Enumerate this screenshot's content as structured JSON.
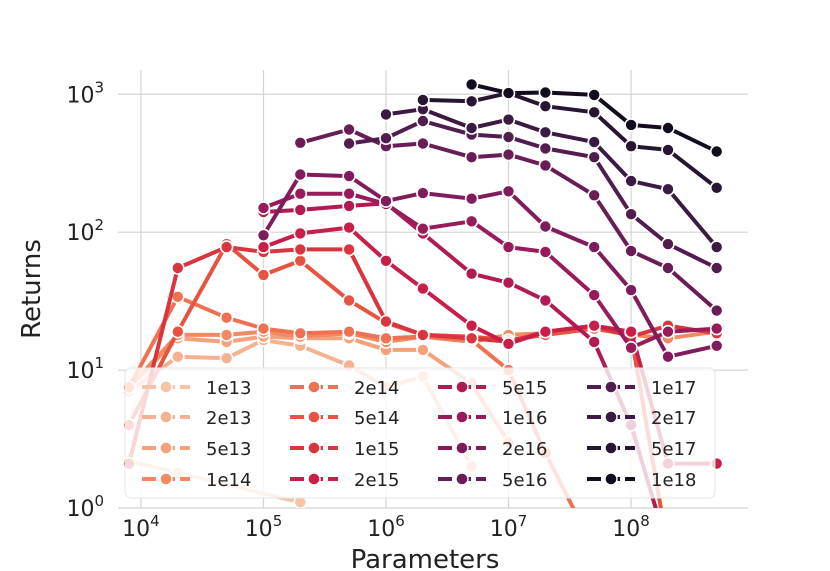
{
  "chart_data": {
    "type": "line",
    "xlabel": "Parameters",
    "ylabel": "Returns",
    "xscale": "log",
    "yscale": "log",
    "xlim": [
      6500,
      900000000
    ],
    "ylim": [
      1,
      1500
    ],
    "x_ticks": [
      {
        "value": 10000,
        "base": "10",
        "exp": "4"
      },
      {
        "value": 100000,
        "base": "10",
        "exp": "5"
      },
      {
        "value": 1000000,
        "base": "10",
        "exp": "6"
      },
      {
        "value": 10000000,
        "base": "10",
        "exp": "7"
      },
      {
        "value": 100000000,
        "base": "10",
        "exp": "8"
      }
    ],
    "y_ticks": [
      {
        "value": 1,
        "base": "10",
        "exp": "0"
      },
      {
        "value": 10,
        "base": "10",
        "exp": "1"
      },
      {
        "value": 100,
        "base": "10",
        "exp": "2"
      },
      {
        "value": 1000,
        "base": "10",
        "exp": "3"
      }
    ],
    "grid": true,
    "legend_position": "lower-left",
    "series": [
      {
        "name": "1e13",
        "color": "#f6c3a6",
        "x": [
          8000,
          20000,
          200000
        ],
        "y": [
          2.2,
          1.8,
          1.1
        ]
      },
      {
        "name": "2e13",
        "color": "#f5b190",
        "x": [
          8000,
          20000,
          50000,
          100000,
          200000,
          500000,
          1000000,
          2000000,
          5000000
        ],
        "y": [
          7.0,
          12.5,
          12.2,
          16.5,
          15.0,
          10.8,
          7.5,
          9.0,
          2.0
        ]
      },
      {
        "name": "5e13",
        "color": "#f4a17e",
        "x": [
          8000,
          20000,
          50000,
          100000,
          200000,
          500000,
          1000000,
          2000000,
          5000000,
          10000000
        ],
        "y": [
          7.5,
          17.0,
          16.0,
          17.5,
          17.0,
          17.0,
          14.0,
          14.0,
          8.0,
          3.0
        ]
      },
      {
        "name": "1e14",
        "color": "#f18a63",
        "x": [
          8000,
          20000,
          50000,
          100000,
          200000,
          500000,
          1000000,
          2000000,
          5000000,
          10000000,
          20000000,
          50000000,
          100000000,
          200000000,
          500000000
        ],
        "y": [
          7.5,
          18.0,
          18.0,
          19.0,
          17.5,
          18.5,
          16.0,
          17.5,
          16.0,
          18.0,
          18.5,
          20.0,
          18.0,
          17.0,
          19.0
        ]
      },
      {
        "name": "2e14",
        "color": "#ee7252",
        "x": [
          8000,
          20000,
          50000,
          100000,
          200000,
          500000,
          1000000,
          2000000,
          5000000,
          10000000,
          20000000,
          50000000
        ],
        "y": [
          7.5,
          34.0,
          24.0,
          20.0,
          18.5,
          19.0,
          17.0,
          17.5,
          16.5,
          10.0,
          2.5,
          0.5
        ]
      },
      {
        "name": "5e14",
        "color": "#e65441",
        "x": [
          8000,
          20000,
          50000,
          100000,
          200000,
          500000,
          1000000,
          2000000,
          5000000,
          10000000,
          20000000,
          50000000,
          100000000,
          200000000
        ],
        "y": [
          4.0,
          19.0,
          82.0,
          49.0,
          62.0,
          32.0,
          22.0,
          18.0,
          17.5,
          16.5,
          18.0,
          20.0,
          18.0,
          0.5
        ]
      },
      {
        "name": "1e15",
        "color": "#d9353f",
        "x": [
          8000,
          20000,
          50000,
          100000,
          200000,
          500000,
          1000000,
          2000000,
          5000000,
          10000000,
          20000000,
          50000000,
          100000000,
          200000000,
          500000000
        ],
        "y": [
          2.1,
          55.0,
          78.0,
          72.0,
          75.0,
          75.0,
          22.5,
          18.0,
          17.0,
          16.0,
          19.0,
          21.0,
          17.5,
          21.0,
          18.5
        ]
      },
      {
        "name": "2e15",
        "color": "#c81e48",
        "x": [
          100000,
          200000,
          500000,
          1000000,
          2000000,
          5000000,
          10000000,
          20000000,
          50000000,
          100000000,
          200000000,
          500000000
        ],
        "y": [
          78.0,
          98.0,
          108.0,
          62.0,
          39.0,
          21.0,
          15.5,
          19.0,
          21.0,
          19.0,
          2.1,
          2.1
        ]
      },
      {
        "name": "5e15",
        "color": "#b11a53",
        "x": [
          100000,
          200000,
          500000,
          1000000,
          2000000,
          5000000,
          10000000,
          20000000,
          50000000,
          100000000,
          200000000
        ],
        "y": [
          140.0,
          145.0,
          155.0,
          162.0,
          98.0,
          50.0,
          43.0,
          32.0,
          16.0,
          4.0,
          0.5
        ]
      },
      {
        "name": "1e16",
        "color": "#981b5a",
        "x": [
          100000,
          200000,
          500000,
          1000000,
          2000000,
          5000000,
          10000000,
          20000000,
          50000000,
          100000000,
          200000000,
          500000000
        ],
        "y": [
          150.0,
          190.0,
          190.0,
          160.0,
          106.0,
          120.0,
          78.0,
          72.0,
          35.0,
          14.5,
          19.0,
          20.0
        ]
      },
      {
        "name": "2e16",
        "color": "#801c5b",
        "x": [
          100000,
          200000,
          500000,
          1000000,
          2000000,
          5000000,
          10000000,
          20000000,
          50000000,
          100000000,
          200000000,
          500000000
        ],
        "y": [
          95.0,
          262.0,
          255.0,
          168.0,
          192.0,
          175.0,
          198.0,
          110.0,
          78.0,
          38.0,
          12.5,
          15.0
        ]
      },
      {
        "name": "5e16",
        "color": "#681d56",
        "x": [
          200000,
          500000,
          1000000,
          2000000,
          5000000,
          10000000,
          20000000,
          50000000,
          100000000,
          200000000,
          500000000
        ],
        "y": [
          445.0,
          555.0,
          420.0,
          440.0,
          350.0,
          365.0,
          305.0,
          185.0,
          73.0,
          55.0,
          27.0
        ]
      },
      {
        "name": "1e17",
        "color": "#511c4e",
        "x": [
          500000,
          1000000,
          2000000,
          5000000,
          10000000,
          20000000,
          50000000,
          100000000,
          200000000,
          500000000
        ],
        "y": [
          440.0,
          480.0,
          640.0,
          510.0,
          490.0,
          405.0,
          350.0,
          135.0,
          82.0,
          55.0
        ]
      },
      {
        "name": "2e17",
        "color": "#3b1a43",
        "x": [
          1000000,
          2000000,
          5000000,
          10000000,
          20000000,
          50000000,
          100000000,
          200000000,
          500000000
        ],
        "y": [
          715.0,
          780.0,
          570.0,
          655.0,
          530.0,
          450.0,
          235.0,
          205.0,
          78.0
        ]
      },
      {
        "name": "5e17",
        "color": "#261533",
        "x": [
          2000000,
          5000000,
          10000000,
          20000000,
          50000000,
          100000000,
          200000000,
          500000000
        ],
        "y": [
          910.0,
          890.0,
          1020.0,
          820.0,
          740.0,
          420.0,
          395.0,
          210.0
        ]
      },
      {
        "name": "1e18",
        "color": "#120c1e",
        "x": [
          5000000,
          10000000,
          20000000,
          50000000,
          100000000,
          200000000,
          500000000
        ],
        "y": [
          1180.0,
          1020.0,
          1030.0,
          990.0,
          600.0,
          570.0,
          385.0
        ]
      }
    ]
  }
}
